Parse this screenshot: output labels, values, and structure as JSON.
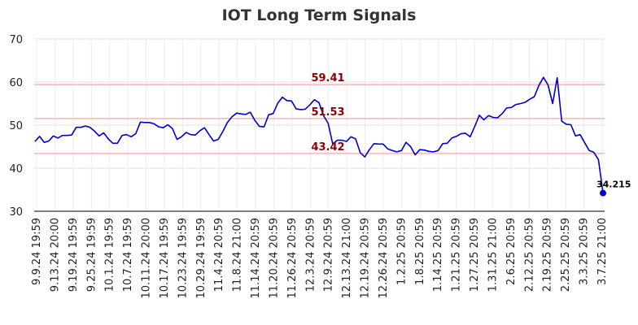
{
  "chart_data": {
    "type": "line",
    "title": "IOT Long Term Signals",
    "xlabel": "",
    "ylabel": "",
    "ylim": [
      30,
      70
    ],
    "y_ticks": [
      30,
      40,
      50,
      60,
      70
    ],
    "grid": true,
    "colors": {
      "line": "#0000cc",
      "ref_line": "#ffb3b3",
      "ref_label": "#8b0000",
      "grid": "#e0e0e0"
    },
    "x_tick_labels": [
      "9.9.24 19:59",
      "9.13.24 20:00",
      "9.19.24 19:59",
      "9.25.24 19:59",
      "10.1.24 19:59",
      "10.7.24 19:59",
      "10.11.24 20:00",
      "10.17.24 19:59",
      "10.23.24 19:59",
      "10.29.24 19:59",
      "11.4.24 20:59",
      "11.8.24 21:00",
      "11.14.24 20:59",
      "11.20.24 20:59",
      "11.26.24 20:59",
      "12.3.24 20:59",
      "12.9.24 20:59",
      "12.13.24 21:00",
      "12.19.24 20:59",
      "12.26.24 20:59",
      "1.2.25 20:59",
      "1.8.25 20:59",
      "1.14.25 20:59",
      "1.21.25 20:59",
      "1.27.25 20:59",
      "1.31.25 21:00",
      "2.6.25 20:59",
      "2.12.25 20:59",
      "2.19.25 20:59",
      "2.25.25 20:59",
      "3.3.25 20:59",
      "3.7.25 21:00"
    ],
    "reference_lines": [
      {
        "value": 59.41,
        "label": "59.41"
      },
      {
        "value": 51.53,
        "label": "51.53"
      },
      {
        "value": 43.42,
        "label": "43.42"
      }
    ],
    "series": [
      {
        "values": [
          46.2,
          47.4,
          46.0,
          46.3,
          47.5,
          47.0,
          47.6,
          47.6,
          47.7,
          49.5,
          49.5,
          49.8,
          49.5,
          48.6,
          47.5,
          48.2,
          46.8,
          45.8,
          45.8,
          47.6,
          47.8,
          47.3,
          48.0,
          50.7,
          50.6,
          50.6,
          50.3,
          49.6,
          49.4,
          50.1,
          49.2,
          46.7,
          47.3,
          48.3,
          47.8,
          47.7,
          48.7,
          49.4,
          47.8,
          46.3,
          46.7,
          48.5,
          50.6,
          51.9,
          52.8,
          52.6,
          52.5,
          53.0,
          51.1,
          49.7,
          49.6,
          52.4,
          52.7,
          55.1,
          56.5,
          55.7,
          55.6,
          53.8,
          53.6,
          53.7,
          54.7,
          55.9,
          55.2,
          52.2,
          50.4,
          45.6,
          46.5,
          46.5,
          46.2,
          47.3,
          46.8,
          43.6,
          42.6,
          44.3,
          45.7,
          45.6,
          45.6,
          44.5,
          44.1,
          43.8,
          44.1,
          46.0,
          45.0,
          43.1,
          44.3,
          44.2,
          43.9,
          43.8,
          44.1,
          45.7,
          45.8,
          47.0,
          47.4,
          48.0,
          48.1,
          47.3,
          49.7,
          52.3,
          51.2,
          52.2,
          51.8,
          51.7,
          52.7,
          54.0,
          54.1,
          54.8,
          55.0,
          55.3,
          56.0,
          56.6,
          59.2,
          61.1,
          59.3,
          55.0,
          61.0,
          50.9,
          50.2,
          50.1,
          47.5,
          47.8,
          45.9,
          44.1,
          43.7,
          42.0,
          34.215
        ],
        "last_value": 34.215,
        "last_label": "34.215"
      }
    ]
  }
}
